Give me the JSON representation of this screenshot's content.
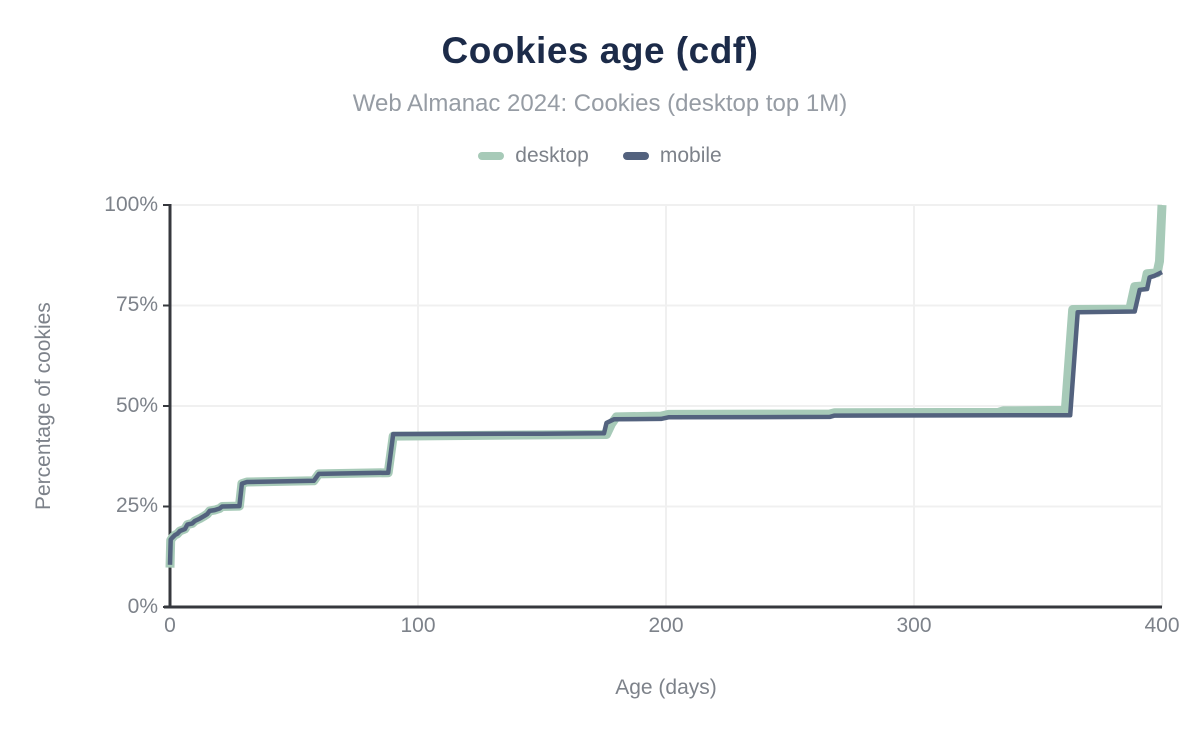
{
  "chart_data": {
    "type": "line",
    "step": true,
    "title": "Cookies age (cdf)",
    "subtitle": "Web Almanac 2024: Cookies (desktop top 1M)",
    "xlabel": "Age (days)",
    "ylabel": "Percentage of cookies",
    "xlim": [
      0,
      400
    ],
    "ylim": [
      0,
      100
    ],
    "grid": true,
    "legend_position": "top",
    "x_ticks": [
      0,
      100,
      200,
      300,
      400
    ],
    "x_tick_labels": [
      "0",
      "100",
      "200",
      "300",
      "400"
    ],
    "y_ticks": [
      0,
      25,
      50,
      75,
      100
    ],
    "y_tick_labels": [
      "0%",
      "25%",
      "50%",
      "75%",
      "100%"
    ],
    "colors": {
      "title": "#1c2b49",
      "subtitle": "#969ca4",
      "gray_label": "#7d828a",
      "axis": "#36383e",
      "grid": "#f0f0f0",
      "desktop": "#a7cab8",
      "mobile": "#53627e"
    },
    "series": [
      {
        "name": "desktop",
        "color": "#a7cab8",
        "stroke_width": 9,
        "points": [
          [
            0,
            9.8
          ],
          [
            0.3,
            16.6
          ],
          [
            1,
            17.3
          ],
          [
            2,
            17.9
          ],
          [
            3,
            18.2
          ],
          [
            4,
            18.9
          ],
          [
            6,
            19.4
          ],
          [
            7,
            20.5
          ],
          [
            9,
            20.8
          ],
          [
            10,
            21.4
          ],
          [
            12,
            22.0
          ],
          [
            14,
            22.7
          ],
          [
            15,
            23.1
          ],
          [
            16,
            23.9
          ],
          [
            18,
            24.1
          ],
          [
            20,
            24.5
          ],
          [
            21,
            25.0
          ],
          [
            28,
            25.1
          ],
          [
            29,
            30.7
          ],
          [
            31,
            31.1
          ],
          [
            58,
            31.4
          ],
          [
            60,
            33.1
          ],
          [
            88,
            33.4
          ],
          [
            90,
            42.5
          ],
          [
            150,
            42.8
          ],
          [
            176,
            42.9
          ],
          [
            178,
            45.5
          ],
          [
            180,
            47.3
          ],
          [
            198,
            47.5
          ],
          [
            201,
            47.9
          ],
          [
            266,
            48.0
          ],
          [
            268,
            48.3
          ],
          [
            334,
            48.4
          ],
          [
            336,
            48.8
          ],
          [
            361,
            48.9
          ],
          [
            364,
            74.0
          ],
          [
            387,
            74.1
          ],
          [
            389,
            79.7
          ],
          [
            393,
            79.9
          ],
          [
            394,
            82.9
          ],
          [
            398,
            83.1
          ],
          [
            399,
            86.0
          ],
          [
            400,
            100
          ]
        ]
      },
      {
        "name": "mobile",
        "color": "#53627e",
        "stroke_width": 4.5,
        "points": [
          [
            0,
            10.5
          ],
          [
            0.3,
            16.8
          ],
          [
            1,
            17.3
          ],
          [
            2,
            17.9
          ],
          [
            3,
            18.2
          ],
          [
            4,
            18.9
          ],
          [
            6,
            19.4
          ],
          [
            7,
            20.5
          ],
          [
            9,
            20.8
          ],
          [
            10,
            21.4
          ],
          [
            12,
            22.0
          ],
          [
            14,
            22.7
          ],
          [
            15,
            23.1
          ],
          [
            16,
            23.9
          ],
          [
            18,
            24.1
          ],
          [
            20,
            24.5
          ],
          [
            21,
            25.0
          ],
          [
            28,
            25.1
          ],
          [
            29,
            30.7
          ],
          [
            31,
            31.1
          ],
          [
            58,
            31.4
          ],
          [
            60,
            33.1
          ],
          [
            88,
            33.4
          ],
          [
            90,
            43.0
          ],
          [
            150,
            43.1
          ],
          [
            175,
            43.2
          ],
          [
            176,
            45.8
          ],
          [
            179,
            46.7
          ],
          [
            198,
            46.8
          ],
          [
            201,
            47.2
          ],
          [
            266,
            47.3
          ],
          [
            268,
            47.6
          ],
          [
            363,
            47.7
          ],
          [
            366,
            73.3
          ],
          [
            389,
            73.5
          ],
          [
            391,
            78.9
          ],
          [
            394,
            79.1
          ],
          [
            395,
            82.0
          ],
          [
            397,
            82.4
          ],
          [
            400,
            83.3
          ]
        ]
      }
    ]
  }
}
